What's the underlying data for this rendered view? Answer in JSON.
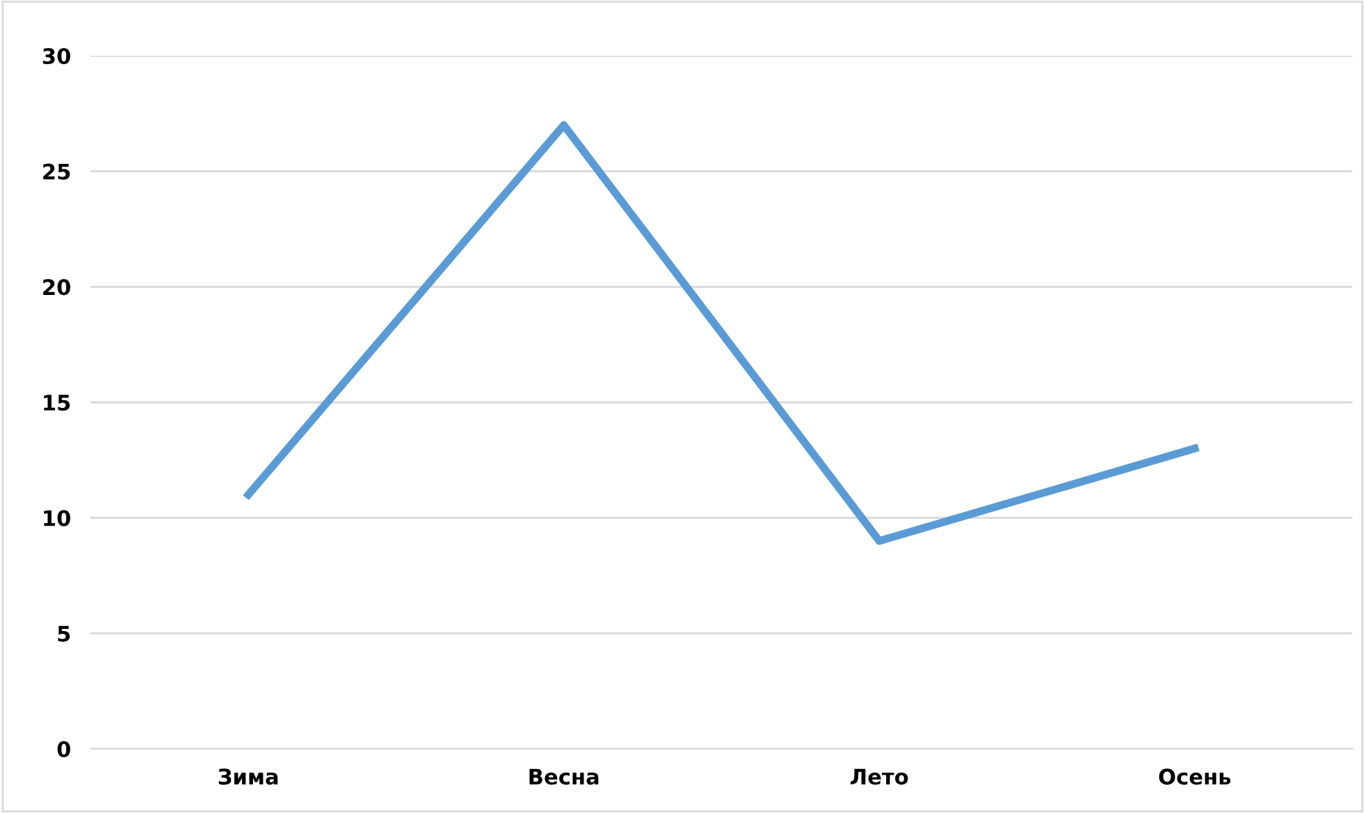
{
  "chart_data": {
    "type": "line",
    "categories": [
      "Зима",
      "Весна",
      "Лето",
      "Осень"
    ],
    "series": [
      {
        "color": "#5b9bd5",
        "values": [
          11,
          27,
          9,
          13
        ]
      }
    ],
    "ylim": [
      0,
      30
    ],
    "yticks": [
      0,
      5,
      10,
      15,
      20,
      25,
      30
    ],
    "grid": "y",
    "legend": false,
    "marker": "none",
    "line_style": "solid"
  }
}
